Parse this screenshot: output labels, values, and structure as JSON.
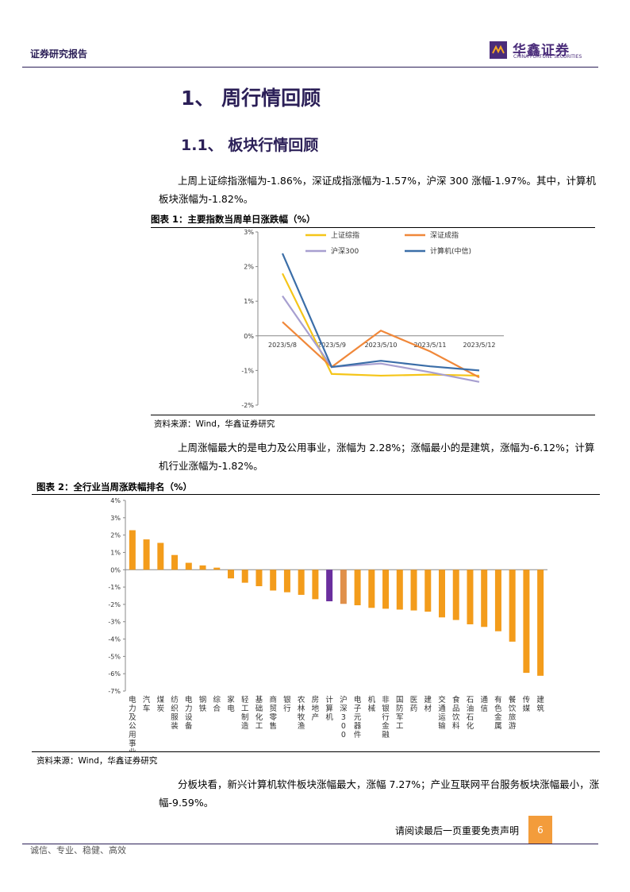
{
  "header": {
    "report_type": "证券研究报告",
    "logo_cn": "华鑫证券",
    "logo_en": "CHINA FORTUNE SECURITIES"
  },
  "section": {
    "h1": "1、 周行情回顾",
    "h2": "1.1、 板块行情回顾"
  },
  "paragraphs": {
    "p1": "上周上证综指涨幅为-1.86%，深证成指涨幅为-1.57%，沪深 300 涨幅-1.97%。其中，计算机板块涨幅为-1.82%。",
    "p2": "上周涨幅最大的是电力及公用事业，涨幅为 2.28%；涨幅最小的是建筑，涨幅为-6.12%；计算机行业涨幅为-1.82%。",
    "p3": "分板块看，新兴计算机软件板块涨幅最大，涨幅 7.27%；产业互联网平台服务板块涨幅最小，涨幅-9.59%。"
  },
  "figure1": {
    "title": "图表 1：主要指数当周单日涨跌幅（%）",
    "source": "资料来源：Wind，华鑫证券研究"
  },
  "figure2": {
    "title": "图表 2：全行业当周涨跌幅排名（%）",
    "source": "资料来源：Wind，华鑫证券研究"
  },
  "footer": {
    "note": "请阅读最后一页重要免责声明",
    "page": "6",
    "slogan": "诚信、专业、稳健、高效"
  },
  "chart_data": [
    {
      "type": "line",
      "x": [
        "2023/5/8",
        "2023/5/9",
        "2023/5/10",
        "2023/5/11",
        "2023/5/12"
      ],
      "ylim": [
        -2,
        3
      ],
      "yticks": [
        "-2%",
        "-1%",
        "0%",
        "1%",
        "2%",
        "3%"
      ],
      "legend_position": "top",
      "series": [
        {
          "name": "上证综指",
          "color": "#f5c518",
          "values": [
            1.8,
            -1.1,
            -1.15,
            -1.12,
            -1.15
          ]
        },
        {
          "name": "深证成指",
          "color": "#f0883a",
          "values": [
            0.4,
            -0.9,
            0.15,
            -0.45,
            -1.2
          ]
        },
        {
          "name": "沪深300",
          "color": "#a79fd0",
          "values": [
            1.15,
            -0.9,
            -0.8,
            -1.05,
            -1.33
          ]
        },
        {
          "name": "计算机(中信)",
          "color": "#3b6ea8",
          "values": [
            2.38,
            -0.9,
            -0.72,
            -0.88,
            -1.0
          ]
        }
      ]
    },
    {
      "type": "bar",
      "ylim": [
        -7,
        4
      ],
      "yticks": [
        "-7%",
        "-6%",
        "-5%",
        "-4%",
        "-3%",
        "-2%",
        "-1%",
        "0%",
        "1%",
        "2%",
        "3%",
        "4%"
      ],
      "default_color": "#f39c1b",
      "categories": [
        "电力及公用事业",
        "汽车",
        "煤炭",
        "纺织服装",
        "电力设备",
        "钢铁",
        "综合",
        "家电",
        "轻工制造",
        "基础化工",
        "商贸零售",
        "银行",
        "农林牧渔",
        "房地产",
        "计算机",
        "沪深300",
        "电子元器件",
        "机械",
        "非银行金融",
        "国防军工",
        "医药",
        "建材",
        "交通运输",
        "食品饮料",
        "石油石化",
        "通信",
        "有色金属",
        "餐饮旅游",
        "传媒",
        "建筑"
      ],
      "values": [
        2.28,
        1.75,
        1.55,
        0.85,
        0.4,
        0.25,
        0.12,
        -0.5,
        -0.75,
        -0.95,
        -1.2,
        -1.3,
        -1.45,
        -1.7,
        -1.82,
        -1.97,
        -2.05,
        -2.2,
        -2.25,
        -2.3,
        -2.35,
        -2.42,
        -2.75,
        -2.9,
        -3.15,
        -3.3,
        -3.55,
        -4.15,
        -5.95,
        -6.12
      ],
      "highlights": [
        {
          "category": "计算机",
          "color": "#6a2f9e"
        },
        {
          "category": "沪深300",
          "color": "#e0904a"
        }
      ]
    }
  ]
}
